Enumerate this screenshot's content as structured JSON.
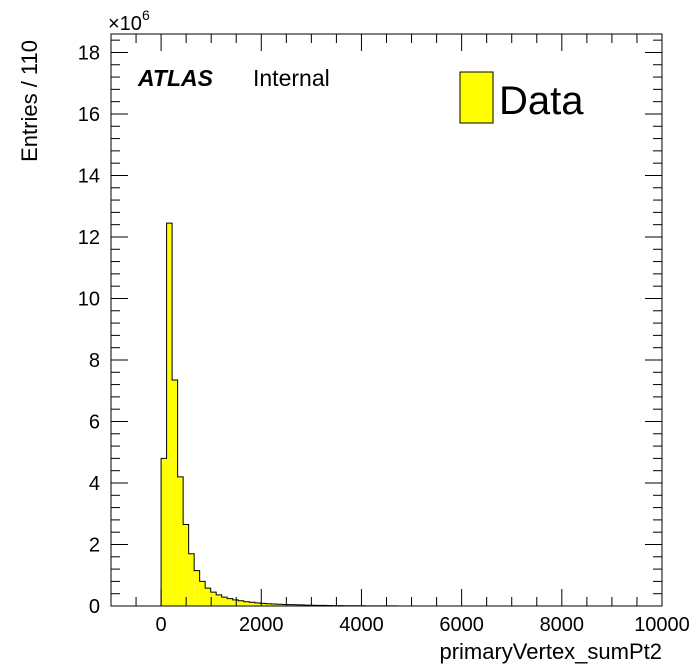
{
  "chart_data": {
    "type": "bar",
    "histogram": true,
    "xlabel": "primaryVertex_sumPt2",
    "ylabel": "Entries / 110",
    "y_multiplier": "×10^6",
    "y_multiplier_base": "×10",
    "y_multiplier_exp": "6",
    "xlim": [
      -1000,
      10000
    ],
    "ylim": [
      0,
      18.6
    ],
    "x_ticks": [
      0,
      2000,
      4000,
      6000,
      8000,
      10000
    ],
    "x_tick_labels": [
      "0",
      "2000",
      "4000",
      "6000",
      "8000",
      "10000"
    ],
    "y_ticks": [
      0,
      2,
      4,
      6,
      8,
      10,
      12,
      14,
      16,
      18
    ],
    "y_tick_labels": [
      "0",
      "2",
      "4",
      "6",
      "8",
      "10",
      "12",
      "14",
      "16",
      "18"
    ],
    "bin_width": 110,
    "bins_start": 0,
    "series": [
      {
        "name": "Data",
        "color": "#ffff00",
        "values": [
          4.8,
          12.45,
          7.35,
          4.2,
          2.65,
          1.7,
          1.15,
          0.8,
          0.58,
          0.45,
          0.36,
          0.29,
          0.24,
          0.2,
          0.17,
          0.14,
          0.12,
          0.1,
          0.085,
          0.075,
          0.065,
          0.058,
          0.05,
          0.045,
          0.04,
          0.035,
          0.03,
          0.026,
          0.022,
          0.019,
          0.016,
          0.014,
          0.012,
          0.01,
          0.009,
          0.008,
          0.007,
          0.006,
          0.005,
          0.004,
          0.0035,
          0.003,
          0.0025,
          0.002,
          0.0015,
          0.001
        ]
      }
    ],
    "legend": {
      "position": "top-right",
      "entries": [
        "Data"
      ]
    },
    "grid": false
  },
  "labels": {
    "atlas": "ATLAS",
    "internal": "Internal"
  },
  "colors": {
    "fill": "#ffff00",
    "line": "#000000",
    "background": "#ffffff"
  }
}
